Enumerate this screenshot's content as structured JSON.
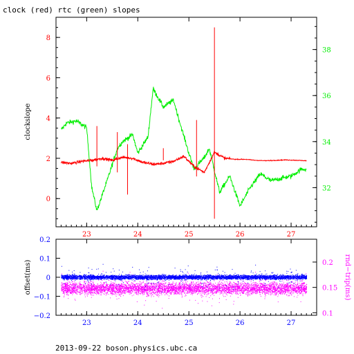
{
  "colors": {
    "clock": "#ff0000",
    "rtc": "#00ee00",
    "offset": "#0000ff",
    "rtt": "#ff00ff",
    "axis": "#000000"
  },
  "title": "clock (red) rtc (green) slopes",
  "footer": "2013-09-22 boson.physics.ubc.ca",
  "chart_data": [
    {
      "type": "line",
      "title": "clock (red) rtc (green) slopes",
      "xlim": [
        22.4,
        27.5
      ],
      "x_ticks": [
        23,
        24,
        25,
        26,
        27
      ],
      "x_tick_labels": [
        "23",
        "24",
        "25",
        "26",
        "27"
      ],
      "ylabel": "clockslope",
      "ylim": [
        -1.4,
        9.0
      ],
      "y_ticks": [
        0,
        2,
        4,
        6,
        8
      ],
      "y_tick_labels": [
        "0",
        "2",
        "4",
        "6",
        "8"
      ],
      "ylim_right": [
        30.3,
        39.4
      ],
      "y2_ticks": [
        32,
        34,
        36,
        38
      ],
      "y2_tick_labels": [
        "32",
        "34",
        "36",
        "38"
      ],
      "grid": false,
      "series": [
        {
          "axis": "left",
          "x": [
            22.5,
            22.7,
            22.9,
            23.1,
            23.3,
            23.5,
            23.7,
            23.9,
            24.1,
            24.3,
            24.5,
            24.7,
            24.9,
            25.1,
            25.3,
            25.5,
            25.7,
            25.9,
            26.1,
            26.3,
            26.5,
            26.7,
            26.9,
            27.1,
            27.3
          ],
          "y": [
            1.8,
            1.75,
            1.85,
            1.9,
            2.0,
            1.9,
            2.05,
            2.0,
            1.8,
            1.7,
            1.75,
            1.85,
            2.1,
            1.6,
            1.3,
            2.3,
            2.0,
            1.95,
            1.95,
            1.9,
            1.88,
            1.9,
            1.92,
            1.9,
            1.88
          ]
        },
        {
          "axis": "right",
          "x": [
            22.5,
            22.6,
            22.8,
            23.0,
            23.1,
            23.2,
            23.4,
            23.6,
            23.7,
            23.9,
            24.0,
            24.2,
            24.3,
            24.5,
            24.7,
            24.8,
            25.0,
            25.1,
            25.3,
            25.4,
            25.6,
            25.8,
            26.0,
            26.2,
            26.4,
            26.6,
            26.8,
            27.0,
            27.2,
            27.3
          ],
          "y": [
            34.5,
            34.8,
            34.9,
            34.6,
            32.0,
            31.0,
            32.3,
            33.7,
            34.0,
            34.3,
            33.5,
            34.2,
            36.3,
            35.5,
            35.8,
            35.0,
            33.5,
            32.8,
            33.3,
            33.7,
            31.8,
            32.5,
            31.2,
            32.0,
            32.6,
            32.3,
            32.4,
            32.5,
            32.8,
            32.8
          ]
        }
      ],
      "spikes": [
        {
          "x": 23.2,
          "y_low": 1.6,
          "y_high": 3.6
        },
        {
          "x": 23.6,
          "y_low": 1.3,
          "y_high": 3.3
        },
        {
          "x": 23.8,
          "y_low": 0.2,
          "y_high": 2.7
        },
        {
          "x": 24.5,
          "y_low": 1.9,
          "y_high": 2.5
        },
        {
          "x": 25.15,
          "y_low": 1.1,
          "y_high": 3.9
        },
        {
          "x": 25.5,
          "y_low": -1.0,
          "y_high": 8.5
        }
      ]
    },
    {
      "type": "scatter",
      "xlim": [
        22.4,
        27.5
      ],
      "x_ticks": [
        23,
        24,
        25,
        26,
        27
      ],
      "x_tick_labels": [
        "23",
        "24",
        "25",
        "26",
        "27"
      ],
      "ylabel": "offset(ms)",
      "ylim": [
        -0.2,
        0.2
      ],
      "y_ticks": [
        -0.2,
        -0.1,
        0,
        0.1,
        0.2
      ],
      "y_tick_labels": [
        "−0.2",
        "−0.1",
        "0",
        "0.1",
        "0.2"
      ],
      "ylabel_right": "rnd−trip(ms)",
      "ylim_right": [
        0.095,
        0.245
      ],
      "y2_ticks": [
        0.1,
        0.15,
        0.2
      ],
      "y2_tick_labels": [
        "0.1",
        "0.15",
        "0.2"
      ],
      "grid": false,
      "series": [
        {
          "axis": "left",
          "x_range": [
            22.5,
            27.3
          ],
          "center": 0.0,
          "core_spread": 0.02,
          "outlier_spread": 0.1
        },
        {
          "axis": "right",
          "x_range": [
            22.5,
            27.3
          ],
          "center": 0.148,
          "core_spread": 0.02,
          "outlier_spread": 0.05
        }
      ]
    }
  ]
}
